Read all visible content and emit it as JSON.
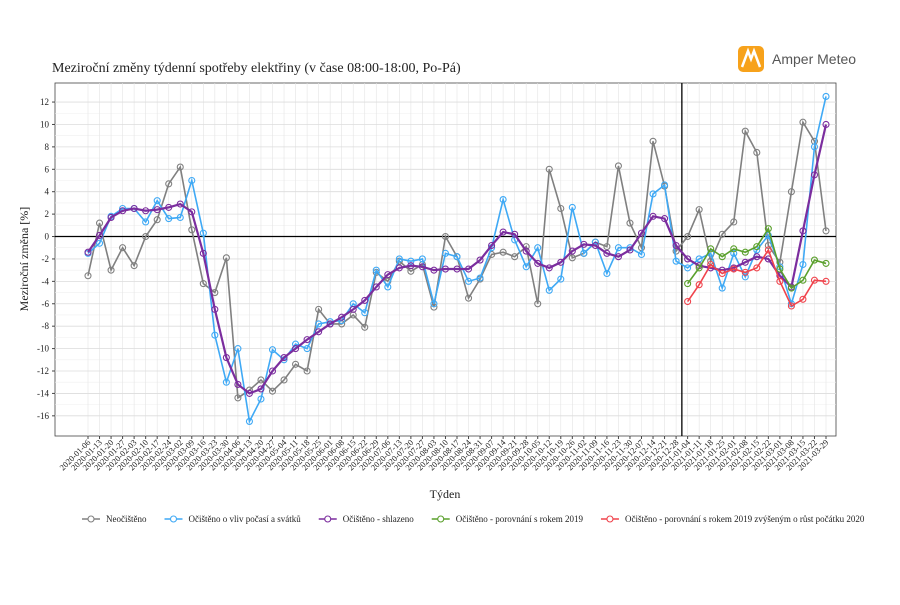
{
  "brand": "Amper Meteo",
  "chart_data": {
    "type": "line",
    "title": "Meziroční změny týdenní spotřeby elektřiny (v čase 08:00-18:00, Po-Pá)",
    "x_label": "Týden",
    "y_label": "Meziroční změna [%]",
    "categories": [
      "2020-01-06",
      "2020-01-13",
      "2020-01-20",
      "2020-01-27",
      "2020-02-03",
      "2020-02-10",
      "2020-02-17",
      "2020-02-24",
      "2020-03-02",
      "2020-03-09",
      "2020-03-16",
      "2020-03-23",
      "2020-03-30",
      "2020-04-06",
      "2020-04-13",
      "2020-04-20",
      "2020-04-27",
      "2020-05-04",
      "2020-05-11",
      "2020-05-18",
      "2020-05-25",
      "2020-06-01",
      "2020-06-08",
      "2020-06-15",
      "2020-06-22",
      "2020-06-29",
      "2020-07-06",
      "2020-07-13",
      "2020-07-20",
      "2020-07-27",
      "2020-08-03",
      "2020-08-10",
      "2020-08-17",
      "2020-08-24",
      "2020-08-31",
      "2020-09-07",
      "2020-09-14",
      "2020-09-21",
      "2020-09-28",
      "2020-10-05",
      "2020-10-12",
      "2020-10-19",
      "2020-10-26",
      "2020-11-02",
      "2020-11-09",
      "2020-11-16",
      "2020-11-23",
      "2020-11-30",
      "2020-12-07",
      "2020-12-14",
      "2020-12-21",
      "2020-12-28",
      "2021-01-04",
      "2021-01-11",
      "2021-01-18",
      "2021-01-25",
      "2021-02-01",
      "2021-02-08",
      "2021-02-15",
      "2021-02-22",
      "2021-03-01",
      "2021-03-08",
      "2021-03-15",
      "2021-03-22",
      "2021-03-29"
    ],
    "series": [
      {
        "name": "Neočištěno",
        "color": "#808080",
        "values": [
          -3.5,
          1.2,
          -3.0,
          -1.0,
          -2.6,
          0.0,
          1.5,
          4.7,
          6.2,
          0.6,
          -4.2,
          -5.0,
          -1.9,
          -14.4,
          -13.7,
          -12.8,
          -13.8,
          -12.8,
          -11.4,
          -12.0,
          -6.5,
          -7.8,
          -7.8,
          -7.0,
          -8.1,
          -3.2,
          -4.0,
          -2.2,
          -3.1,
          -2.5,
          -6.3,
          0.0,
          -1.8,
          -5.5,
          -3.8,
          -1.6,
          -1.4,
          -1.8,
          -0.9,
          -6.0,
          6.0,
          2.5,
          -1.9,
          -1.5,
          -0.5,
          -0.9,
          6.3,
          1.2,
          -1.0,
          8.5,
          4.5,
          -1.3,
          0.0,
          2.4,
          -2.2,
          0.2,
          1.3,
          9.4,
          7.5,
          -0.8,
          -2.3,
          4.0,
          10.2,
          8.5,
          0.5
        ]
      },
      {
        "name": "Očištěno o vliv počasí a svátků",
        "color": "#3fa9f5",
        "values": [
          -1.5,
          -0.6,
          1.8,
          2.5,
          2.5,
          1.3,
          3.2,
          1.6,
          1.7,
          5.0,
          0.3,
          -8.8,
          -13.0,
          -10.0,
          -16.5,
          -14.5,
          -10.1,
          -11.0,
          -9.6,
          -10.0,
          -7.8,
          -7.6,
          -7.5,
          -6.0,
          -6.8,
          -3.0,
          -4.5,
          -2.0,
          -2.2,
          -2.0,
          -6.0,
          -1.5,
          -1.8,
          -4.0,
          -3.7,
          -1.0,
          3.3,
          -0.3,
          -2.7,
          -1.0,
          -4.8,
          -3.8,
          2.6,
          -1.5,
          -0.5,
          -3.3,
          -1.0,
          -1.0,
          -1.6,
          3.8,
          4.6,
          -2.2,
          -2.8,
          -2.0,
          -1.5,
          -4.6,
          -1.5,
          -3.6,
          -1.2,
          0.1,
          -2.7,
          -6.0,
          -2.5,
          8.0,
          12.5
        ]
      },
      {
        "name": "Očištěno - shlazeno",
        "color": "#7b2d9e",
        "values": [
          -1.4,
          0.1,
          1.7,
          2.3,
          2.5,
          2.3,
          2.4,
          2.6,
          2.9,
          2.2,
          -1.5,
          -6.5,
          -10.8,
          -13.2,
          -14.0,
          -13.6,
          -12.0,
          -10.8,
          -10.0,
          -9.2,
          -8.5,
          -7.8,
          -7.2,
          -6.5,
          -5.7,
          -4.5,
          -3.4,
          -2.8,
          -2.6,
          -2.7,
          -3.0,
          -2.9,
          -2.9,
          -2.9,
          -2.1,
          -0.8,
          0.4,
          0.2,
          -1.3,
          -2.4,
          -2.8,
          -2.3,
          -1.3,
          -0.7,
          -0.8,
          -1.5,
          -1.8,
          -1.2,
          0.3,
          1.8,
          1.6,
          -0.8,
          -2.0,
          -2.6,
          -2.8,
          -3.0,
          -2.8,
          -2.3,
          -1.8,
          -2.0,
          -3.5,
          -4.5,
          0.5,
          5.5,
          10.0
        ]
      },
      {
        "name": "Očištěno - porovnání s rokem 2019",
        "color": "#5aa02c",
        "values": [
          null,
          null,
          null,
          null,
          null,
          null,
          null,
          null,
          null,
          null,
          null,
          null,
          null,
          null,
          null,
          null,
          null,
          null,
          null,
          null,
          null,
          null,
          null,
          null,
          null,
          null,
          null,
          null,
          null,
          null,
          null,
          null,
          null,
          null,
          null,
          null,
          null,
          null,
          null,
          null,
          null,
          null,
          null,
          null,
          null,
          null,
          null,
          null,
          null,
          null,
          null,
          null,
          -4.2,
          -2.8,
          -1.1,
          -1.8,
          -1.1,
          -1.4,
          -0.9,
          0.7,
          -2.9,
          -4.6,
          -3.9,
          -2.1,
          -2.4
        ]
      },
      {
        "name": "Očištěno - porovnání s rokem 2019 zvýšeným o růst počátku 2020",
        "color": "#f0434c",
        "values": [
          null,
          null,
          null,
          null,
          null,
          null,
          null,
          null,
          null,
          null,
          null,
          null,
          null,
          null,
          null,
          null,
          null,
          null,
          null,
          null,
          null,
          null,
          null,
          null,
          null,
          null,
          null,
          null,
          null,
          null,
          null,
          null,
          null,
          null,
          null,
          null,
          null,
          null,
          null,
          null,
          null,
          null,
          null,
          null,
          null,
          null,
          null,
          null,
          null,
          null,
          null,
          null,
          -5.8,
          -4.3,
          -2.5,
          -3.3,
          -2.9,
          -3.2,
          -2.8,
          -1.2,
          -4.0,
          -6.2,
          -5.6,
          -3.9,
          -4.0
        ]
      }
    ],
    "ylim": [
      -17.8,
      13.7
    ],
    "yticks": [
      -16,
      -14,
      -12,
      -10,
      -8,
      -6,
      -4,
      -2,
      0,
      2,
      4,
      6,
      8,
      10,
      12
    ],
    "reference_line": 0,
    "grid": true,
    "legend": "bottom"
  }
}
